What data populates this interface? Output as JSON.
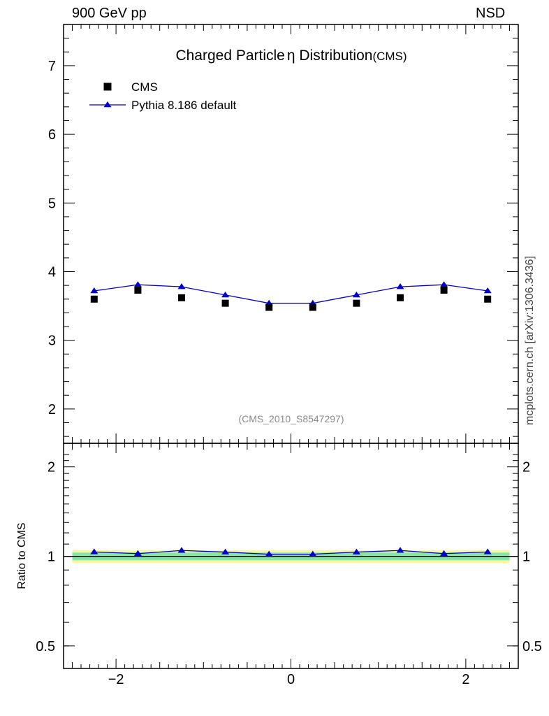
{
  "header": {
    "left": "900 GeV pp",
    "right": "NSD"
  },
  "side_label": "mcplots.cern.ch [arXiv:1306.3436]",
  "colors": {
    "cms": "#000000",
    "pythia": "#0000cc",
    "band_inner": "#86e6a8",
    "band_outer": "#fbf7a0",
    "analysis_id": "#8a8a8a"
  },
  "chart_data": [
    {
      "type": "scatter",
      "title": "Charged Particle",
      "title_symbol": "η",
      "title_suffix": " Distribution",
      "title_tag": "(CMS)",
      "analysis_id": "(CMS_2010_S8547297)",
      "xlabel": "",
      "ylabel": "",
      "xlim": [
        -2.6,
        2.6
      ],
      "ylim": [
        1.5,
        7.6
      ],
      "yticks": [
        2,
        3,
        4,
        5,
        6,
        7
      ],
      "legend_position": "top-left",
      "x": [
        -2.25,
        -1.75,
        -1.25,
        -0.75,
        -0.25,
        0.25,
        0.75,
        1.25,
        1.75,
        2.25
      ],
      "series": [
        {
          "name": "CMS",
          "marker": "square",
          "values": [
            3.6,
            3.73,
            3.62,
            3.54,
            3.48,
            3.48,
            3.54,
            3.62,
            3.73,
            3.6
          ]
        },
        {
          "name": "Pythia 8.186 default",
          "marker": "triangle",
          "line": true,
          "values": [
            3.72,
            3.81,
            3.78,
            3.66,
            3.54,
            3.54,
            3.66,
            3.78,
            3.81,
            3.72
          ]
        }
      ]
    },
    {
      "type": "line",
      "title": "",
      "xlabel": "",
      "ylabel": "Ratio to CMS",
      "xlim": [
        -2.6,
        2.6
      ],
      "ylim": [
        0.42,
        2.4
      ],
      "ylog": true,
      "yticks": [
        0.5,
        1,
        2
      ],
      "ytick_labels": [
        "0.5",
        "1",
        "2"
      ],
      "xticks": [
        -2,
        0,
        2
      ],
      "xtick_labels": [
        "−2",
        "0",
        "2"
      ],
      "x": [
        -2.25,
        -1.75,
        -1.25,
        -0.75,
        -0.25,
        0.25,
        0.75,
        1.25,
        1.75,
        2.25
      ],
      "reference": 1,
      "bands": {
        "inner_half_width": 0.03,
        "outer_half_width": 0.05
      },
      "series": [
        {
          "name": "Pythia 8.186 default",
          "marker": "triangle",
          "values": [
            1.035,
            1.022,
            1.047,
            1.034,
            1.017,
            1.017,
            1.034,
            1.047,
            1.022,
            1.035
          ]
        }
      ]
    }
  ]
}
